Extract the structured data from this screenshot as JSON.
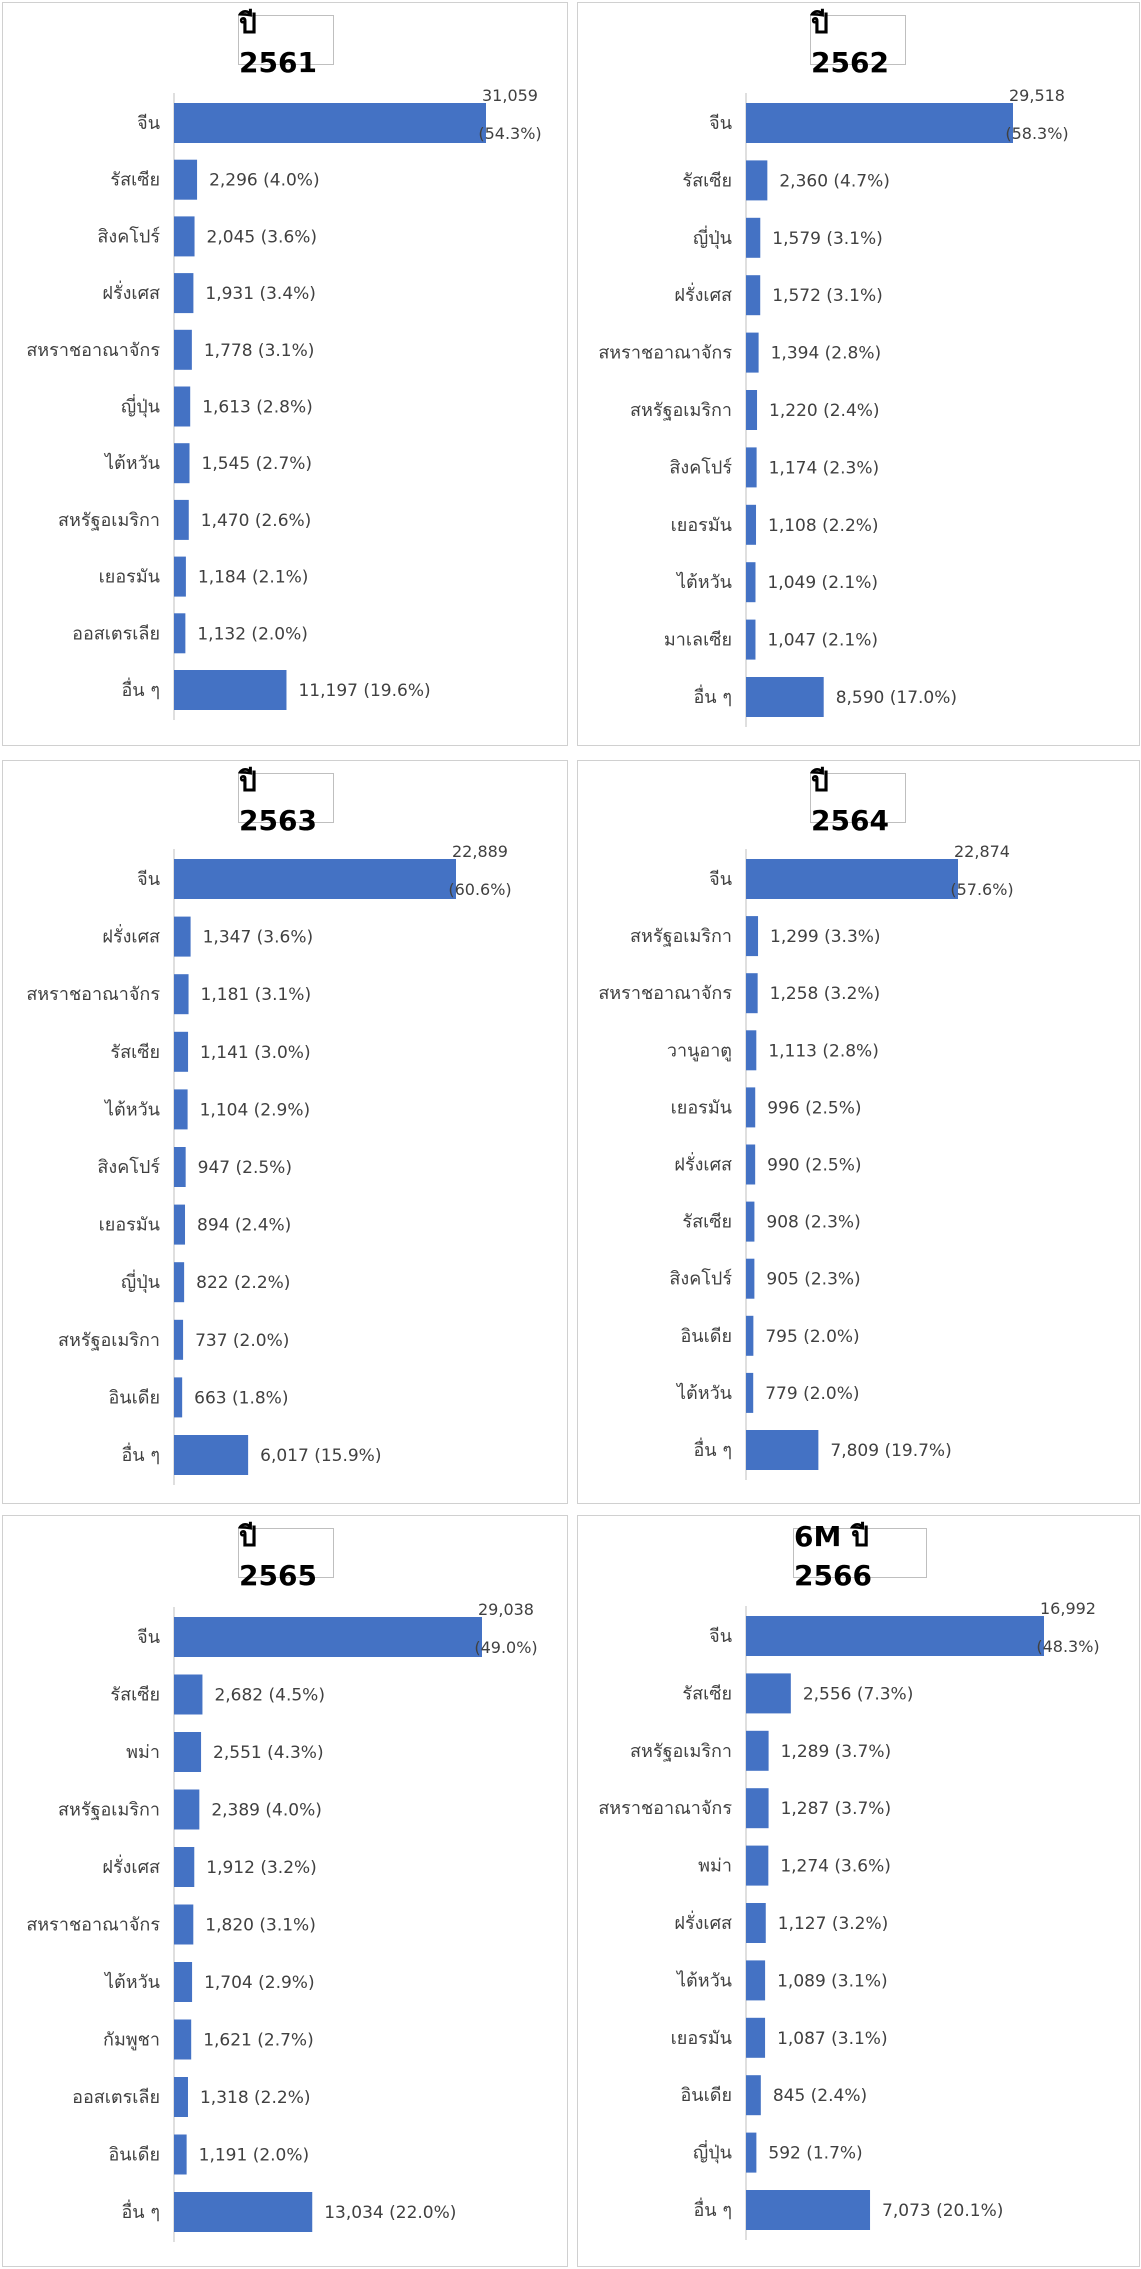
{
  "colors": {
    "bar": "#4472c4",
    "axis": "#bfbfbf",
    "text": "#404040",
    "border": "#d0d0d0"
  },
  "chart_data": [
    {
      "type": "bar",
      "orientation": "horizontal",
      "title": "ปี 2561",
      "categories": [
        "จีน",
        "รัสเซีย",
        "สิงคโปร์",
        "ฝรั่งเศส",
        "สหราชอาณาจักร",
        "ญี่ปุ่น",
        "ไต้หวัน",
        "สหรัฐอเมริกา",
        "เยอรมัน",
        "ออสเตรเลีย",
        "อื่น ๆ"
      ],
      "values": [
        31059,
        2296,
        2045,
        1931,
        1778,
        1613,
        1545,
        1470,
        1184,
        1132,
        11197
      ],
      "data_labels": [
        "31,059",
        "2,296 (4.0%)",
        "2,045 (3.6%)",
        "1,931 (3.4%)",
        "1,778 (3.1%)",
        "1,613 (2.8%)",
        "1,545 (2.7%)",
        "1,470 (2.6%)",
        "1,184 (2.1%)",
        "1,132 (2.0%)",
        "11,197 (19.6%)"
      ],
      "top_share_label": "(54.3%)",
      "grid": false
    },
    {
      "type": "bar",
      "orientation": "horizontal",
      "title": "ปี 2562",
      "categories": [
        "จีน",
        "รัสเซีย",
        "ญี่ปุ่น",
        "ฝรั่งเศส",
        "สหราชอาณาจักร",
        "สหรัฐอเมริกา",
        "สิงคโปร์",
        "เยอรมัน",
        "ไต้หวัน",
        "มาเลเซีย",
        "อื่น ๆ"
      ],
      "values": [
        29518,
        2360,
        1579,
        1572,
        1394,
        1220,
        1174,
        1108,
        1049,
        1047,
        8590
      ],
      "data_labels": [
        "29,518",
        "2,360 (4.7%)",
        "1,579 (3.1%)",
        "1,572 (3.1%)",
        "1,394 (2.8%)",
        "1,220 (2.4%)",
        "1,174 (2.3%)",
        "1,108 (2.2%)",
        "1,049 (2.1%)",
        "1,047 (2.1%)",
        "8,590 (17.0%)"
      ],
      "top_share_label": "(58.3%)",
      "grid": false
    },
    {
      "type": "bar",
      "orientation": "horizontal",
      "title": "ปี 2563",
      "categories": [
        "จีน",
        "ฝรั่งเศส",
        "สหราชอาณาจักร",
        "รัสเซีย",
        "ไต้หวัน",
        "สิงคโปร์",
        "เยอรมัน",
        "ญี่ปุ่น",
        "สหรัฐอเมริกา",
        "อินเดีย",
        "อื่น ๆ"
      ],
      "values": [
        22889,
        1347,
        1181,
        1141,
        1104,
        947,
        894,
        822,
        737,
        663,
        6017
      ],
      "data_labels": [
        "22,889",
        "1,347 (3.6%)",
        "1,181 (3.1%)",
        "1,141 (3.0%)",
        "1,104 (2.9%)",
        "947 (2.5%)",
        "894 (2.4%)",
        "822 (2.2%)",
        "737 (2.0%)",
        "663 (1.8%)",
        "6,017 (15.9%)"
      ],
      "top_share_label": "(60.6%)",
      "grid": false
    },
    {
      "type": "bar",
      "orientation": "horizontal",
      "title": "ปี 2564",
      "categories": [
        "จีน",
        "สหรัฐอเมริกา",
        "สหราชอาณาจักร",
        "วานูอาตู",
        "เยอรมัน",
        "ฝรั่งเศส",
        "รัสเซีย",
        "สิงคโปร์",
        "อินเดีย",
        "ไต้หวัน",
        "อื่น ๆ"
      ],
      "values": [
        22874,
        1299,
        1258,
        1113,
        996,
        990,
        908,
        905,
        795,
        779,
        7809
      ],
      "data_labels": [
        "22,874",
        "1,299 (3.3%)",
        "1,258 (3.2%)",
        "1,113 (2.8%)",
        "996 (2.5%)",
        "990 (2.5%)",
        "908 (2.3%)",
        "905 (2.3%)",
        "795 (2.0%)",
        "779 (2.0%)",
        "7,809 (19.7%)"
      ],
      "top_share_label": "(57.6%)",
      "grid": false
    },
    {
      "type": "bar",
      "orientation": "horizontal",
      "title": "ปี 2565",
      "categories": [
        "จีน",
        "รัสเซีย",
        "พม่า",
        "สหรัฐอเมริกา",
        "ฝรั่งเศส",
        "สหราชอาณาจักร",
        "ไต้หวัน",
        "กัมพูชา",
        "ออสเตรเลีย",
        "อินเดีย",
        "อื่น ๆ"
      ],
      "values": [
        29038,
        2682,
        2551,
        2389,
        1912,
        1820,
        1704,
        1621,
        1318,
        1191,
        13034
      ],
      "data_labels": [
        "29,038",
        "2,682 (4.5%)",
        "2,551 (4.3%)",
        "2,389 (4.0%)",
        "1,912 (3.2%)",
        "1,820 (3.1%)",
        "1,704 (2.9%)",
        "1,621 (2.7%)",
        "1,318 (2.2%)",
        "1,191 (2.0%)",
        "13,034 (22.0%)"
      ],
      "top_share_label": "(49.0%)",
      "grid": false
    },
    {
      "type": "bar",
      "orientation": "horizontal",
      "title": "6M ปี 2566",
      "categories": [
        "จีน",
        "รัสเซีย",
        "สหรัฐอเมริกา",
        "สหราชอาณาจักร",
        "พม่า",
        "ฝรั่งเศส",
        "ไต้หวัน",
        "เยอรมัน",
        "อินเดีย",
        "ญี่ปุ่น",
        "อื่น ๆ"
      ],
      "values": [
        16992,
        2556,
        1289,
        1287,
        1274,
        1127,
        1089,
        1087,
        845,
        592,
        7073
      ],
      "data_labels": [
        "16,992",
        "2,556 (7.3%)",
        "1,289 (3.7%)",
        "1,287 (3.7%)",
        "1,274 (3.6%)",
        "1,127 (3.2%)",
        "1,089 (3.1%)",
        "1,087 (3.1%)",
        "845 (2.4%)",
        "592 (1.7%)",
        "7,073 (20.1%)"
      ],
      "top_share_label": "(48.3%)",
      "grid": false
    }
  ]
}
